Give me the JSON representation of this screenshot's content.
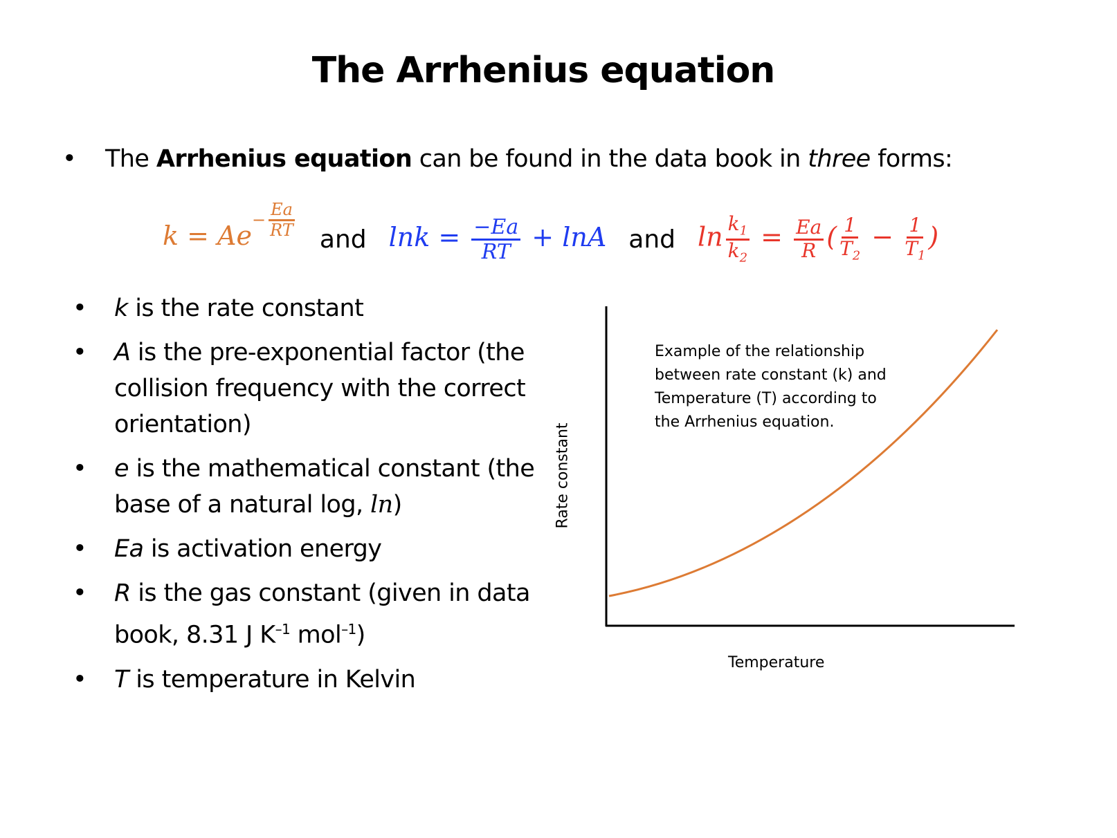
{
  "title": "The Arrhenius equation",
  "intro": {
    "bullet": "•",
    "pre": "The ",
    "bold": "Arrhenius equation",
    "mid": " can be found in the data book in ",
    "italic": "three",
    "post": " forms:"
  },
  "equations": {
    "and": "and",
    "eq1": {
      "lhs": "k = Ae",
      "exp_sign": "−",
      "num": "Ea",
      "den": "RT",
      "color": "#dd7b34"
    },
    "eq2": {
      "lhs": "lnk = ",
      "num": "−Ea",
      "den": "RT",
      "rhs": " + lnA",
      "color": "#1f3cf0"
    },
    "eq3": {
      "ln": "ln",
      "k": "k",
      "sub1": "1",
      "sub2": "2",
      "eq": " = ",
      "num": "Ea",
      "den": "R",
      "open": "(",
      "one": "1",
      "T": "T",
      "minus": " − ",
      "close": ")",
      "color": "#e8352a"
    }
  },
  "definitions": [
    {
      "symbol": "k",
      "text": " is the rate constant"
    },
    {
      "symbol": "A",
      "text": " is the pre-exponential factor (the collision frequency with the correct orientation)"
    },
    {
      "symbol": "e",
      "text": " is the mathematical constant (the base of a natural log, ",
      "symbol2": "ln",
      "text2": ")"
    },
    {
      "symbol": "Ea",
      "text": " is activation energy"
    },
    {
      "symbol": "R",
      "text": " is the gas constant (given in data book, 8.31 J K",
      "sup1": "–1",
      "text2": " mol",
      "sup2": "–1",
      "text3": ")"
    },
    {
      "symbol": "T",
      "text": " is temperature in Kelvin"
    }
  ],
  "chart_data": {
    "type": "line",
    "title": "",
    "xlabel": "Temperature",
    "ylabel": "Rate constant",
    "annotation": "Example of the relationship between rate constant (k) and Temperature (T) according to the Arrhenius equation.",
    "ticks": "none",
    "grid": false,
    "series_color": "#dd7b34",
    "shape": "exponential increase"
  }
}
